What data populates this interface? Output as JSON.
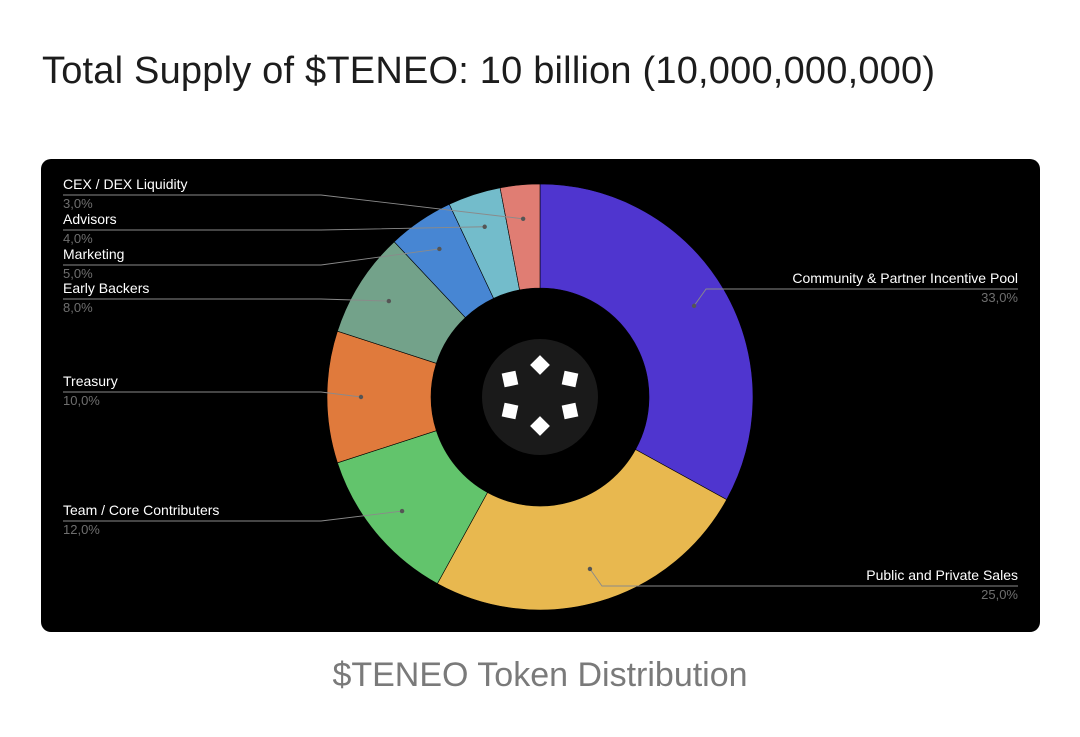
{
  "page": {
    "title": "Total Supply of $TENEO: 10 billion (10,000,000,000)",
    "caption": "$TENEO Token Distribution"
  },
  "chart_data": {
    "type": "pie",
    "donut": true,
    "categories": [
      "Community & Partner Incentive Pool",
      "Public and Private Sales",
      "Team / Core Contributers",
      "Treasury",
      "Early Backers",
      "Marketing",
      "Advisors",
      "CEX / DEX Liquidity"
    ],
    "values": [
      33,
      25,
      12,
      10,
      8,
      5,
      4,
      3
    ],
    "value_labels": [
      "33,0%",
      "25,0%",
      "12,0%",
      "10,0%",
      "8,0%",
      "5,0%",
      "4,0%",
      "3,0%"
    ],
    "colors": [
      "#4f35cf",
      "#e8b84f",
      "#62c46c",
      "#e07a3c",
      "#73a28a",
      "#4786d3",
      "#73bccb",
      "#e07d73"
    ],
    "start_angle": "12 o'clock",
    "direction": "clockwise",
    "center_icon": "teneo-logo-icon"
  }
}
